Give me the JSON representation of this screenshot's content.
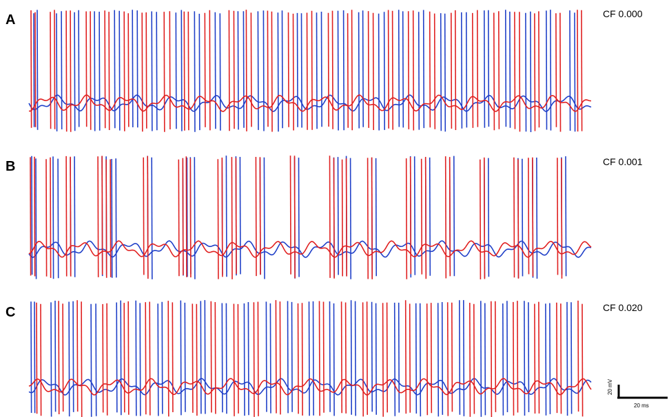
{
  "chart_data": {
    "type": "line",
    "panels": [
      {
        "letter": "A",
        "label": "CF 0.000",
        "series": [
          {
            "color": "#2040c8",
            "spike_times": [
              7,
              12,
              40,
              47,
              66,
              72,
              95,
              102,
              124,
              131,
              150,
              157,
              178,
              185,
              213,
              221,
              240,
              247,
              270,
              277,
              303,
              311,
              332,
              340,
              361,
              367,
              389,
              395,
              417,
              424,
              448,
              456,
              478,
              484,
              507,
              515,
              536,
              542,
              565,
              572,
              597,
              603,
              627,
              634,
              660,
              666,
              691,
              697,
              720,
              727,
              750,
              756,
              784,
              791
            ]
          },
          {
            "color": "#e02020",
            "spike_times": [
              3,
              9,
              31,
              37,
              54,
              60,
              83,
              89,
              110,
              116,
              138,
              144,
              164,
              170,
              196,
              204,
              225,
              231,
              255,
              262,
              290,
              297,
              315,
              322,
              346,
              352,
              376,
              383,
              403,
              410,
              434,
              440,
              462,
              468,
              492,
              499,
              521,
              527,
              550,
              557,
              581,
              588,
              612,
              618,
              643,
              650,
              674,
              681,
              704,
              711,
              733,
              739,
              764,
              770,
              795,
              801
            ]
          }
        ]
      },
      {
        "letter": "B",
        "label": "CF 0.001",
        "series": [
          {
            "color": "#2040c8",
            "spike_times": [
              4,
              10,
              35,
              42,
              60,
              66,
              106,
              112,
              120,
              126,
              172,
              178,
              223,
              229,
              234,
              240,
              280,
              286,
              300,
              306,
              335,
              341,
              385,
              391,
              442,
              448,
              460,
              466,
              497,
              503,
              553,
              559,
              575,
              581,
              610,
              616,
              660,
              666,
              709,
              715,
              730,
              736,
              772,
              778
            ]
          },
          {
            "color": "#e02020",
            "spike_times": [
              2,
              8,
              25,
              31,
              54,
              60,
              100,
              106,
              112,
              118,
              166,
              172,
              217,
              223,
              228,
              234,
              274,
              280,
              294,
              300,
              329,
              335,
              379,
              385,
              436,
              442,
              454,
              460,
              491,
              497,
              547,
              553,
              569,
              575,
              604,
              610,
              654,
              660,
              703,
              709,
              724,
              730,
              766,
              772
            ]
          }
        ]
      },
      {
        "letter": "C",
        "label": "CF 0.020",
        "series": [
          {
            "color": "#2040c8",
            "spike_times": [
              3,
              8,
              32,
              38,
              58,
              64,
              90,
              97,
              127,
              133,
              155,
              161,
              187,
              193,
              220,
              226,
              249,
              255,
              280,
              286,
              312,
              318,
              344,
              350,
              375,
              381,
              406,
              412,
              436,
              442,
              467,
              473,
              497,
              503,
              530,
              536,
              561,
              567,
              593,
              599,
              624,
              630,
              655,
              661,
              687,
              693,
              718,
              724,
              749,
              755,
              780,
              786
            ]
          },
          {
            "color": "#e02020",
            "spike_times": [
              11,
              17,
              43,
              49,
              70,
              76,
              107,
              113,
              138,
              144,
              169,
              175,
              202,
              208,
              237,
              243,
              264,
              270,
              297,
              303,
              326,
              332,
              358,
              364,
              390,
              396,
              421,
              427,
              453,
              459,
              484,
              490,
              513,
              519,
              546,
              552,
              577,
              583,
              607,
              613,
              639,
              645,
              670,
              676,
              702,
              708,
              733,
              739,
              765,
              771,
              796,
              802
            ]
          }
        ]
      }
    ],
    "xlabel": "",
    "ylabel": "",
    "scale_bar": {
      "voltage": "20 mV",
      "time": "20 ms"
    }
  }
}
